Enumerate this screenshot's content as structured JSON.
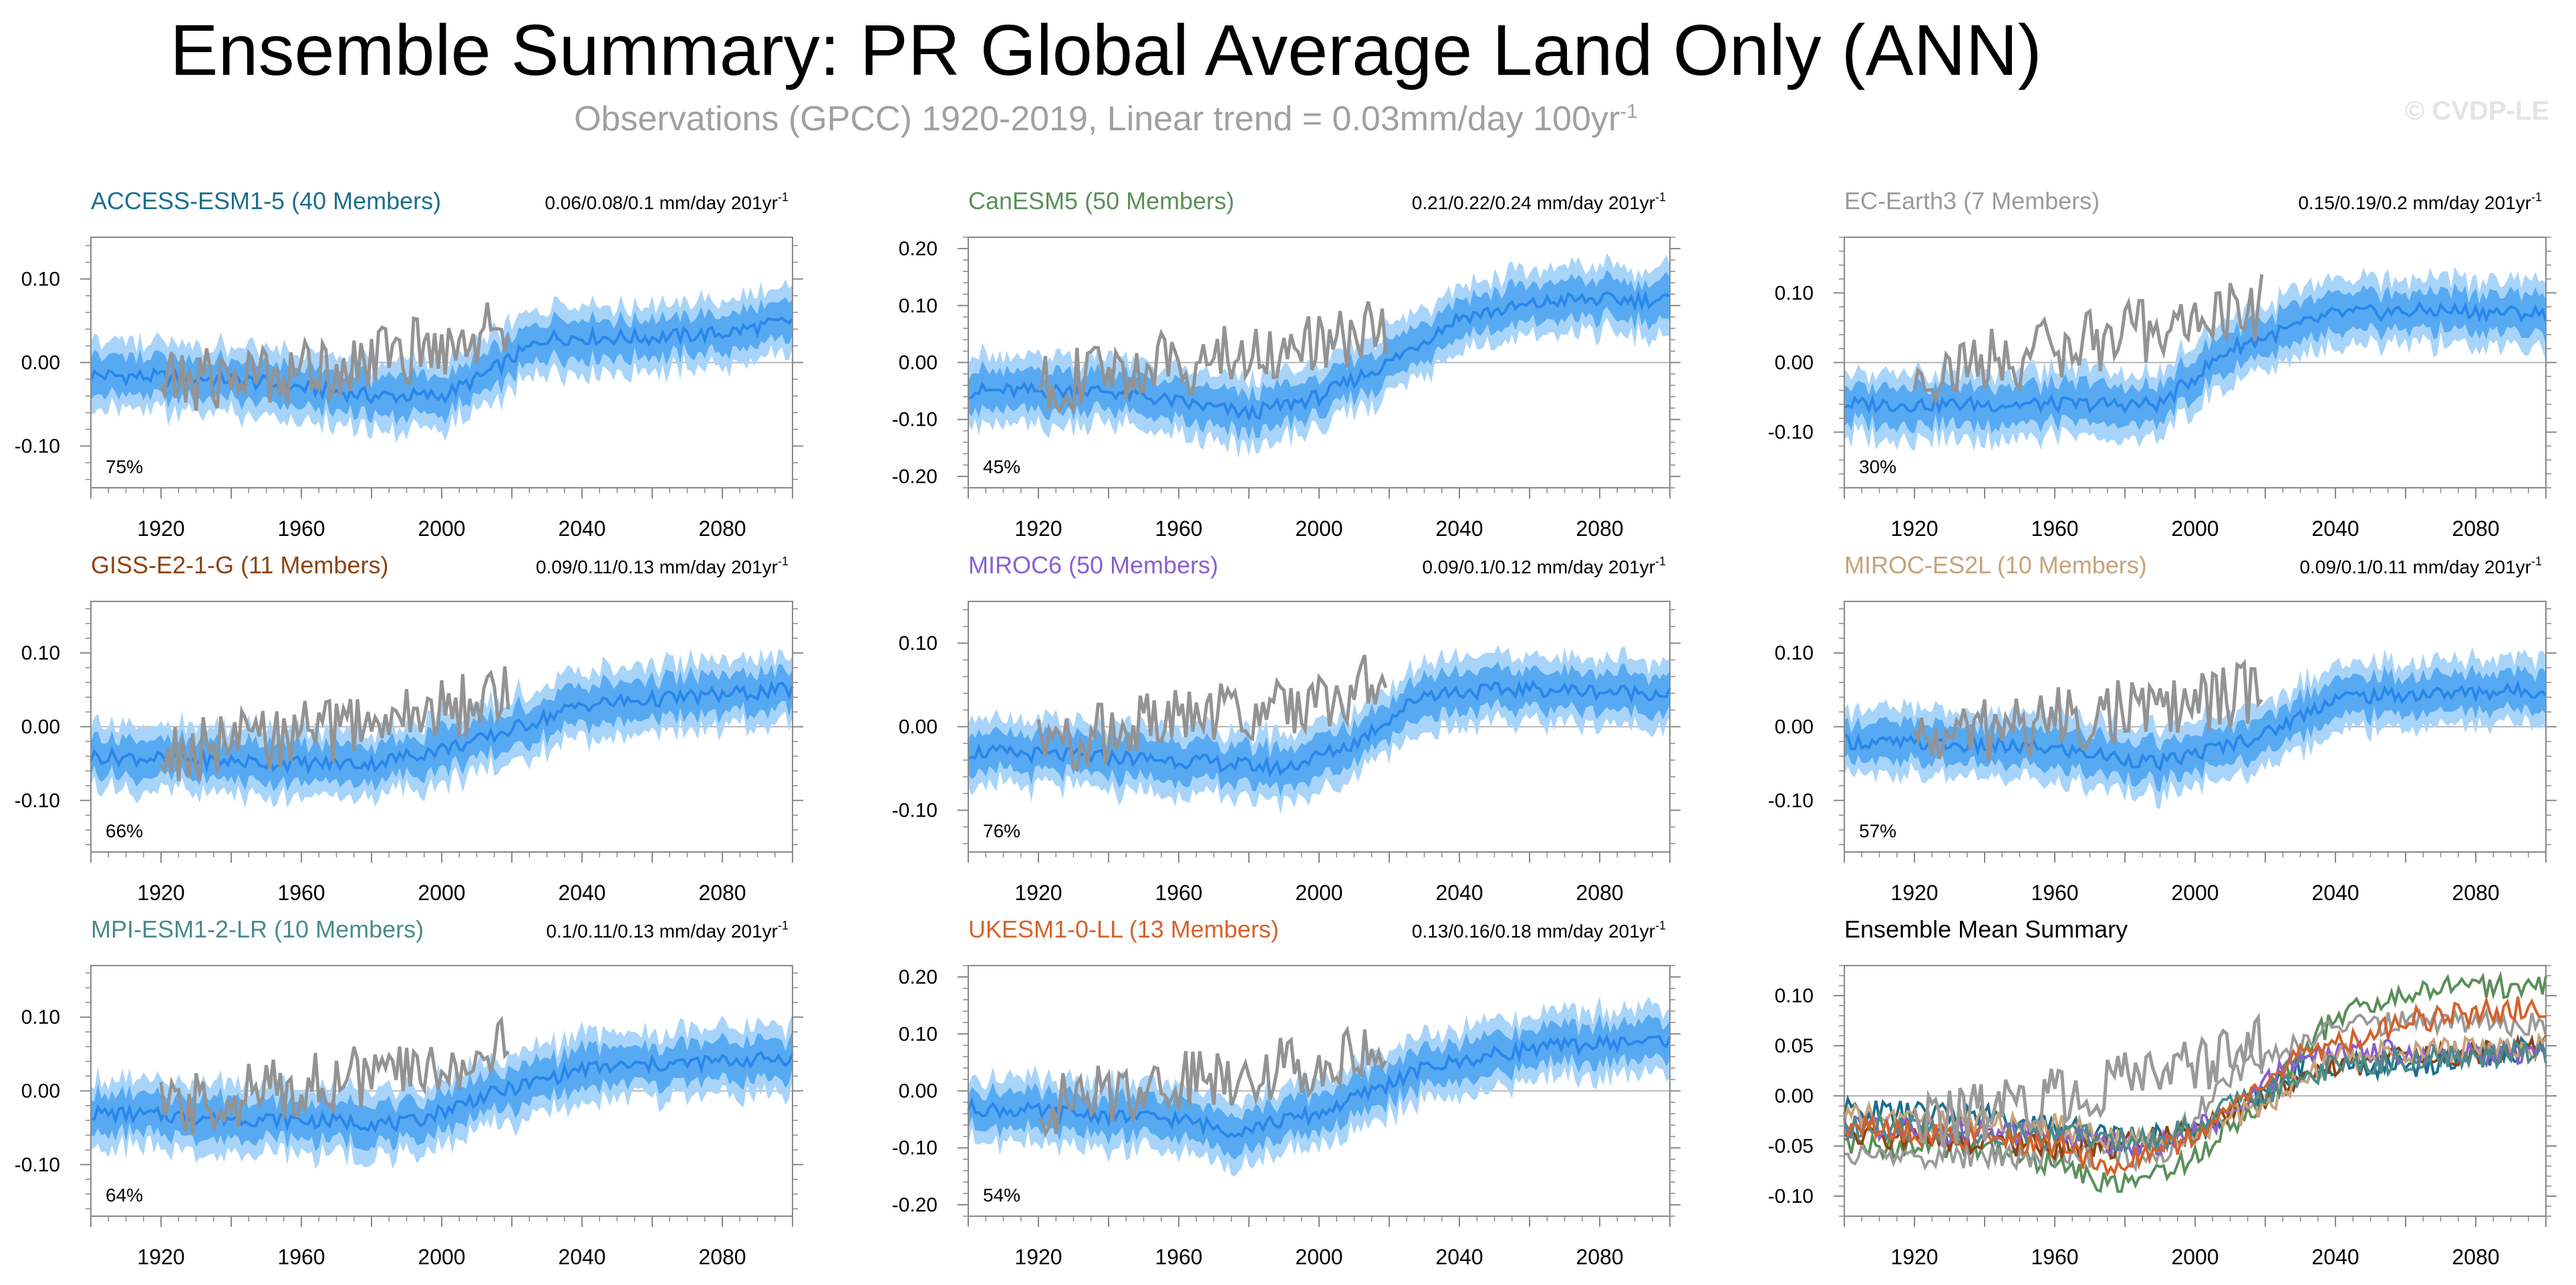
{
  "figure": {
    "title": "Ensemble Summary: PR Global Average Land Only (ANN)",
    "subtitle_prefix": "Observations (GPCC) 1920-2019, Linear trend = 0.03mm/day 100yr",
    "subtitle_sup": "-1",
    "watermark": "© CVDP-LE"
  },
  "chart_data": [
    {
      "type": "line",
      "title": "ACCESS-ESM1-5 (40 Members)",
      "title_color": "#1a6e8e",
      "trend_text": "0.06/0.08/0.1 mm/day 201yr",
      "trend_sup": "-1",
      "percent_label": "75%",
      "xlim": [
        1900,
        2100
      ],
      "ylim": [
        -0.15,
        0.15
      ],
      "yticks": [
        -0.1,
        0.0,
        0.1
      ],
      "ytick_labels": [
        "-0.10",
        "0.00",
        "0.10"
      ],
      "xticks": [
        1920,
        1960,
        2000,
        2040,
        2080
      ],
      "series": [
        {
          "name": "ensemble mean",
          "knots_x": [
            1900,
            1940,
            1960,
            1980,
            2000,
            2010,
            2030,
            2060,
            2080,
            2100
          ],
          "knots_y": [
            -0.015,
            -0.02,
            -0.03,
            -0.04,
            -0.04,
            -0.02,
            0.03,
            0.03,
            0.035,
            0.05
          ]
        },
        {
          "name": "observations (GPCC)",
          "knots_x": [
            1920,
            1960,
            2000,
            2019
          ],
          "knots_y": [
            -0.025,
            -0.01,
            0.02,
            0.045
          ]
        }
      ]
    },
    {
      "type": "line",
      "title": "CanESM5 (50 Members)",
      "title_color": "#5a8f5a",
      "trend_text": "0.21/0.22/0.24 mm/day 201yr",
      "trend_sup": "-1",
      "percent_label": "45%",
      "xlim": [
        1900,
        2100
      ],
      "ylim": [
        -0.22,
        0.22
      ],
      "yticks": [
        -0.2,
        -0.1,
        0.0,
        0.1,
        0.2
      ],
      "ytick_labels": [
        "-0.20",
        "-0.10",
        "0.00",
        "0.10",
        "0.20"
      ],
      "xticks": [
        1920,
        1960,
        2000,
        2040,
        2080
      ],
      "series": [
        {
          "name": "ensemble mean",
          "knots_x": [
            1900,
            1940,
            1960,
            1980,
            2000,
            2020,
            2040,
            2070,
            2100
          ],
          "knots_y": [
            -0.05,
            -0.05,
            -0.07,
            -0.09,
            -0.06,
            0.0,
            0.08,
            0.11,
            0.11
          ]
        },
        {
          "name": "observations (GPCC)",
          "knots_x": [
            1920,
            1960,
            2000,
            2019
          ],
          "knots_y": [
            -0.04,
            0.0,
            0.03,
            0.06
          ]
        }
      ]
    },
    {
      "type": "line",
      "title": "EC-Earth3 (7 Members)",
      "title_color": "#9a9a9a",
      "trend_text": "0.15/0.19/0.2 mm/day 201yr",
      "trend_sup": "-1",
      "percent_label": "30%",
      "xlim": [
        1900,
        2100
      ],
      "ylim": [
        -0.18,
        0.18
      ],
      "yticks": [
        -0.1,
        0.0,
        0.1
      ],
      "ytick_labels": [
        "-0.10",
        "0.00",
        "0.10"
      ],
      "xticks": [
        1920,
        1960,
        2000,
        2040,
        2080
      ],
      "series": [
        {
          "name": "ensemble mean",
          "knots_x": [
            1900,
            1960,
            1990,
            2010,
            2040,
            2070,
            2100
          ],
          "knots_y": [
            -0.06,
            -0.06,
            -0.06,
            0.02,
            0.07,
            0.075,
            0.07
          ]
        },
        {
          "name": "observations (GPCC)",
          "knots_x": [
            1920,
            1960,
            2000,
            2019
          ],
          "knots_y": [
            -0.02,
            0.02,
            0.06,
            0.08
          ]
        }
      ]
    },
    {
      "type": "line",
      "title": "GISS-E2-1-G (11 Members)",
      "title_color": "#8b4513",
      "trend_text": "0.09/0.11/0.13 mm/day 201yr",
      "trend_sup": "-1",
      "percent_label": "66%",
      "xlim": [
        1900,
        2100
      ],
      "ylim": [
        -0.17,
        0.17
      ],
      "yticks": [
        -0.1,
        0.0,
        0.1
      ],
      "ytick_labels": [
        "-0.10",
        "0.00",
        "0.10"
      ],
      "xticks": [
        1920,
        1960,
        2000,
        2040,
        2080
      ],
      "series": [
        {
          "name": "ensemble mean",
          "knots_x": [
            1900,
            1960,
            1980,
            2010,
            2040,
            2100
          ],
          "knots_y": [
            -0.04,
            -0.05,
            -0.05,
            -0.02,
            0.03,
            0.05
          ]
        },
        {
          "name": "observations (GPCC)",
          "knots_x": [
            1920,
            1960,
            2000,
            2019
          ],
          "knots_y": [
            -0.04,
            -0.01,
            0.02,
            0.045
          ]
        }
      ]
    },
    {
      "type": "line",
      "title": "MIROC6 (50 Members)",
      "title_color": "#8a5fd0",
      "trend_text": "0.09/0.1/0.12 mm/day 201yr",
      "trend_sup": "-1",
      "percent_label": "76%",
      "xlim": [
        1900,
        2100
      ],
      "ylim": [
        -0.15,
        0.15
      ],
      "yticks": [
        -0.1,
        0.0,
        0.1
      ],
      "ytick_labels": [
        "-0.10",
        "0.00",
        "0.10"
      ],
      "xticks": [
        1920,
        1960,
        2000,
        2040,
        2080
      ],
      "series": [
        {
          "name": "ensemble mean",
          "knots_x": [
            1900,
            1960,
            1990,
            2010,
            2030,
            2060,
            2100
          ],
          "knots_y": [
            -0.03,
            -0.04,
            -0.05,
            -0.02,
            0.04,
            0.045,
            0.04
          ]
        },
        {
          "name": "observations (GPCC)",
          "knots_x": [
            1920,
            1960,
            2000,
            2019
          ],
          "knots_y": [
            -0.025,
            0.01,
            0.03,
            0.06
          ]
        }
      ]
    },
    {
      "type": "line",
      "title": "MIROC-ES2L (10 Members)",
      "title_color": "#c8a27a",
      "trend_text": "0.09/0.1/0.11 mm/day 201yr",
      "trend_sup": "-1",
      "percent_label": "57%",
      "xlim": [
        1900,
        2100
      ],
      "ylim": [
        -0.17,
        0.17
      ],
      "yticks": [
        -0.1,
        0.0,
        0.1
      ],
      "ytick_labels": [
        "-0.10",
        "0.00",
        "0.10"
      ],
      "xticks": [
        1920,
        1960,
        2000,
        2040,
        2080
      ],
      "series": [
        {
          "name": "ensemble mean",
          "knots_x": [
            1900,
            1960,
            1990,
            2020,
            2040,
            2070,
            2100
          ],
          "knots_y": [
            -0.02,
            -0.03,
            -0.05,
            -0.01,
            0.04,
            0.045,
            0.05
          ]
        },
        {
          "name": "observations (GPCC)",
          "knots_x": [
            1920,
            1960,
            2000,
            2019
          ],
          "knots_y": [
            -0.02,
            0.01,
            0.03,
            0.05
          ]
        }
      ]
    },
    {
      "type": "line",
      "title": "MPI-ESM1-2-LR (10 Members)",
      "title_color": "#4a8b8b",
      "trend_text": "0.1/0.11/0.13 mm/day 201yr",
      "trend_sup": "-1",
      "percent_label": "64%",
      "xlim": [
        1900,
        2100
      ],
      "ylim": [
        -0.17,
        0.17
      ],
      "yticks": [
        -0.1,
        0.0,
        0.1
      ],
      "ytick_labels": [
        "-0.10",
        "0.00",
        "0.10"
      ],
      "xticks": [
        1920,
        1960,
        2000,
        2040,
        2080
      ],
      "series": [
        {
          "name": "ensemble mean",
          "knots_x": [
            1900,
            1960,
            1990,
            2010,
            2040,
            2100
          ],
          "knots_y": [
            -0.03,
            -0.04,
            -0.045,
            -0.01,
            0.03,
            0.045
          ]
        },
        {
          "name": "observations (GPCC)",
          "knots_x": [
            1920,
            1960,
            2000,
            2019
          ],
          "knots_y": [
            -0.03,
            0.01,
            0.03,
            0.06
          ]
        }
      ]
    },
    {
      "type": "line",
      "title": "UKESM1-0-LL (13 Members)",
      "title_color": "#d4622a",
      "trend_text": "0.13/0.16/0.18 mm/day 201yr",
      "trend_sup": "-1",
      "percent_label": "54%",
      "xlim": [
        1900,
        2100
      ],
      "ylim": [
        -0.22,
        0.22
      ],
      "yticks": [
        -0.2,
        -0.1,
        0.0,
        0.1,
        0.2
      ],
      "ytick_labels": [
        "-0.20",
        "-0.10",
        "0.00",
        "0.10",
        "0.20"
      ],
      "xticks": [
        1920,
        1960,
        2000,
        2040,
        2080
      ],
      "series": [
        {
          "name": "ensemble mean",
          "knots_x": [
            1900,
            1960,
            1975,
            2000,
            2030,
            2060,
            2100
          ],
          "knots_y": [
            -0.03,
            -0.05,
            -0.07,
            -0.04,
            0.04,
            0.075,
            0.09
          ]
        },
        {
          "name": "observations (GPCC)",
          "knots_x": [
            1920,
            1960,
            2000,
            2019
          ],
          "knots_y": [
            -0.03,
            0.02,
            0.05,
            0.08
          ]
        }
      ]
    },
    {
      "type": "line",
      "title": "Ensemble Mean Summary",
      "title_color": "#000000",
      "xlim": [
        1900,
        2100
      ],
      "ylim": [
        -0.12,
        0.13
      ],
      "yticks": [
        -0.1,
        -0.05,
        0.0,
        0.05,
        0.1
      ],
      "ytick_labels": [
        "-0.10",
        "-0.05",
        "0.00",
        "0.05",
        "0.10"
      ],
      "xticks": [
        1920,
        1960,
        2000,
        2040,
        2080
      ],
      "series": [
        {
          "name": "ACCESS-ESM1-5",
          "color": "#1a6e8e",
          "knots_x": [
            1900,
            1940,
            1960,
            1980,
            2000,
            2010,
            2030,
            2060,
            2100
          ],
          "knots_y": [
            -0.015,
            -0.02,
            -0.03,
            -0.04,
            -0.04,
            -0.02,
            0.03,
            0.03,
            0.05
          ]
        },
        {
          "name": "CanESM5",
          "color": "#5a8f5a",
          "knots_x": [
            1900,
            1940,
            1960,
            1980,
            2000,
            2020,
            2040,
            2070,
            2100
          ],
          "knots_y": [
            -0.05,
            -0.05,
            -0.07,
            -0.09,
            -0.06,
            0.0,
            0.08,
            0.11,
            0.11
          ]
        },
        {
          "name": "EC-Earth3",
          "color": "#9a9a9a",
          "knots_x": [
            1900,
            1960,
            1990,
            2010,
            2040,
            2070,
            2100
          ],
          "knots_y": [
            -0.06,
            -0.06,
            -0.06,
            0.02,
            0.07,
            0.075,
            0.07
          ]
        },
        {
          "name": "GISS-E2-1-G",
          "color": "#8b4513",
          "knots_x": [
            1900,
            1960,
            1980,
            2010,
            2040,
            2100
          ],
          "knots_y": [
            -0.04,
            -0.05,
            -0.05,
            -0.02,
            0.03,
            0.05
          ]
        },
        {
          "name": "MIROC6",
          "color": "#8a5fd0",
          "knots_x": [
            1900,
            1960,
            1990,
            2010,
            2030,
            2060,
            2100
          ],
          "knots_y": [
            -0.03,
            -0.04,
            -0.05,
            -0.02,
            0.04,
            0.045,
            0.04
          ]
        },
        {
          "name": "MIROC-ES2L",
          "color": "#c8a27a",
          "knots_x": [
            1900,
            1960,
            1990,
            2020,
            2040,
            2070,
            2100
          ],
          "knots_y": [
            -0.02,
            -0.03,
            -0.05,
            -0.01,
            0.04,
            0.045,
            0.05
          ]
        },
        {
          "name": "MPI-ESM1-2-LR",
          "color": "#4a8b8b",
          "knots_x": [
            1900,
            1960,
            1990,
            2010,
            2040,
            2100
          ],
          "knots_y": [
            -0.03,
            -0.04,
            -0.045,
            -0.01,
            0.03,
            0.045
          ]
        },
        {
          "name": "UKESM1-0-LL",
          "color": "#d4622a",
          "knots_x": [
            1900,
            1960,
            1975,
            2000,
            2030,
            2060,
            2100
          ],
          "knots_y": [
            -0.03,
            -0.05,
            -0.07,
            -0.04,
            0.04,
            0.075,
            0.09
          ]
        },
        {
          "name": "observations (GPCC)",
          "color": "#9a9a9a",
          "knots_x": [
            1920,
            1960,
            2000,
            2019
          ],
          "knots_y": [
            -0.03,
            0.0,
            0.03,
            0.05
          ]
        }
      ]
    }
  ],
  "colors": {
    "outer_band": "#a8d4fa",
    "inner_band": "#57aaf2",
    "mean_line": "#2b86ea",
    "obs_line": "#939393",
    "axis": "#888888",
    "zero_line": "#b4b4b4"
  }
}
